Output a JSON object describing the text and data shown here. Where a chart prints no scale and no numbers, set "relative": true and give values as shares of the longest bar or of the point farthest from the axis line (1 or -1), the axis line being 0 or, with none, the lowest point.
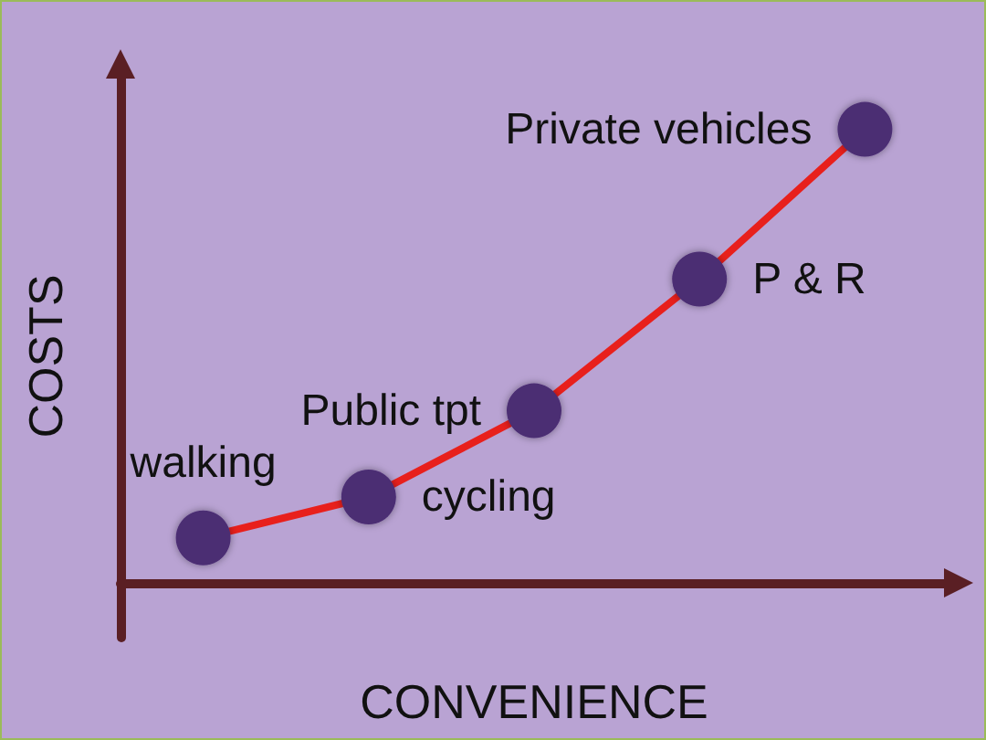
{
  "chart_data": {
    "type": "line",
    "relative": true,
    "xlabel": "CONVENIENCE",
    "ylabel": "COSTS",
    "grid": false,
    "marker": "circle",
    "categories": [
      null,
      null,
      null,
      null,
      null
    ],
    "series": [
      {
        "color": "#e8201c",
        "values": [
          0.1,
          0.19,
          0.38,
          0.67,
          1
        ]
      }
    ],
    "annotations": [
      "walking",
      "cycling",
      "Public tpt",
      "P & R",
      "Private vehicles"
    ]
  }
}
